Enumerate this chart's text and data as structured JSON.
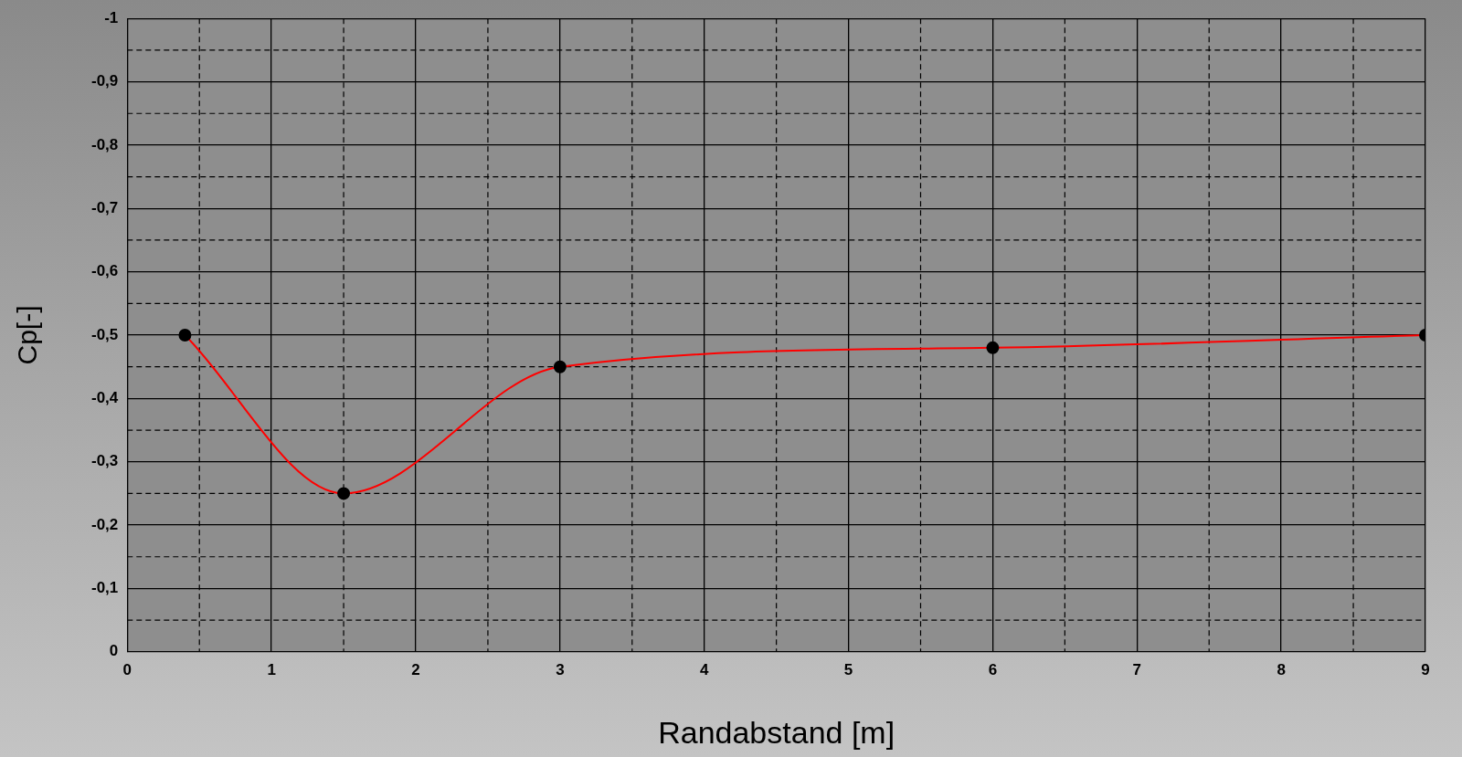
{
  "chart_data": {
    "type": "line",
    "xlabel": "Randabstand [m]",
    "ylabel": "Cp[-]",
    "x": [
      0.4,
      1.5,
      3,
      6,
      9
    ],
    "series": [
      {
        "color": "#ff0000",
        "values": [
          -0.5,
          -0.25,
          -0.45,
          -0.48,
          -0.5
        ]
      }
    ],
    "xlim": [
      0,
      9
    ],
    "xticks": [
      0,
      {
        "value": 0.5,
        "label": null
      },
      1,
      {
        "value": 1.5,
        "label": null
      },
      2,
      {
        "value": 2.5,
        "label": null
      },
      3,
      {
        "value": 3.5,
        "label": null
      },
      4,
      {
        "value": 4.5,
        "label": null
      },
      5,
      {
        "value": 5.5,
        "label": null
      },
      6,
      {
        "value": 6.5,
        "label": null
      },
      7,
      {
        "value": 7.5,
        "label": null
      },
      8,
      {
        "value": 8.5,
        "label": null
      },
      9
    ],
    "ylim": [
      0,
      -1
    ],
    "yticks": [
      {
        "value": 0,
        "label": "0"
      },
      {
        "value": -0.05,
        "label": null
      },
      {
        "value": -0.1,
        "label": "-0,1"
      },
      {
        "value": -0.15,
        "label": null
      },
      {
        "value": -0.2,
        "label": "-0,2"
      },
      {
        "value": -0.25,
        "label": null
      },
      {
        "value": -0.3,
        "label": "-0,3"
      },
      {
        "value": -0.35,
        "label": null
      },
      {
        "value": -0.4,
        "label": "-0,4"
      },
      {
        "value": -0.45,
        "label": null
      },
      {
        "value": -0.5,
        "label": "-0,5"
      },
      {
        "value": -0.55,
        "label": null
      },
      {
        "value": -0.6,
        "label": "-0,6"
      },
      {
        "value": -0.65,
        "label": null
      },
      {
        "value": -0.7,
        "label": "-0,7"
      },
      {
        "value": -0.75,
        "label": null
      },
      {
        "value": -0.8,
        "label": "-0,8"
      },
      {
        "value": -0.85,
        "label": null
      },
      {
        "value": -0.9,
        "label": "-0,9"
      },
      {
        "value": -0.95,
        "label": null
      },
      {
        "value": -1,
        "label": "-1"
      }
    ],
    "grid": true,
    "legend": false,
    "marker": "circle",
    "line_style": "solid"
  }
}
